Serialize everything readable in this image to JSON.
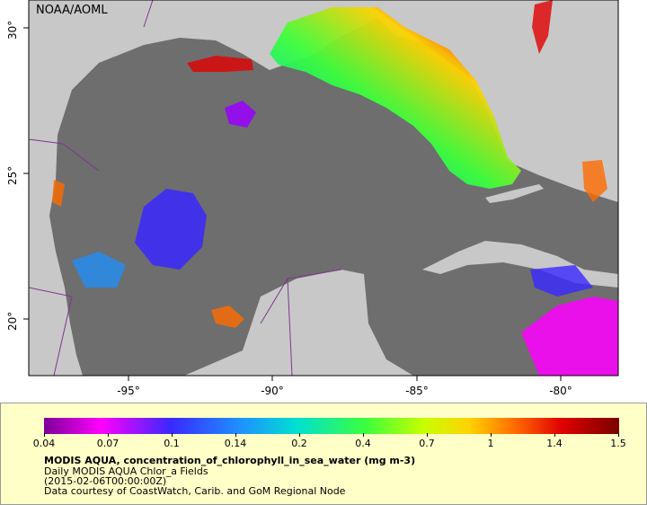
{
  "map": {
    "credit": "NOAA/AOML",
    "lon_labels": [
      "-95°",
      "-90°",
      "-85°",
      "-80°"
    ],
    "lat_labels": [
      "30°",
      "25°",
      "20°"
    ],
    "colors": {
      "land": "#c8c8c8",
      "no_data_ocean": "#6e6e6e",
      "boundary": "#7a3a8a"
    }
  },
  "legend": {
    "ticks": [
      "0.04",
      "0.07",
      "0.1",
      "0.14",
      "0.2",
      "0.4",
      "0.7",
      "1",
      "1.4",
      "1.5"
    ],
    "variable": "MODIS AQUA, concentration_of_chlorophyll_in_sea_water (mg m-3)",
    "line1": "Daily MODIS AQUA Chlor_a Fields",
    "line2": "(2015-02-06T00:00:00Z)",
    "line3": "Data courtesy of CoastWatch, Carib. and GoM Regional Node",
    "colors": [
      "#7d0099",
      "#ff00ff",
      "#3a28ff",
      "#1e90ff",
      "#00e0d0",
      "#3cff3c",
      "#c8ff00",
      "#ffd200",
      "#ff6a00",
      "#e10000",
      "#7a0000"
    ]
  }
}
